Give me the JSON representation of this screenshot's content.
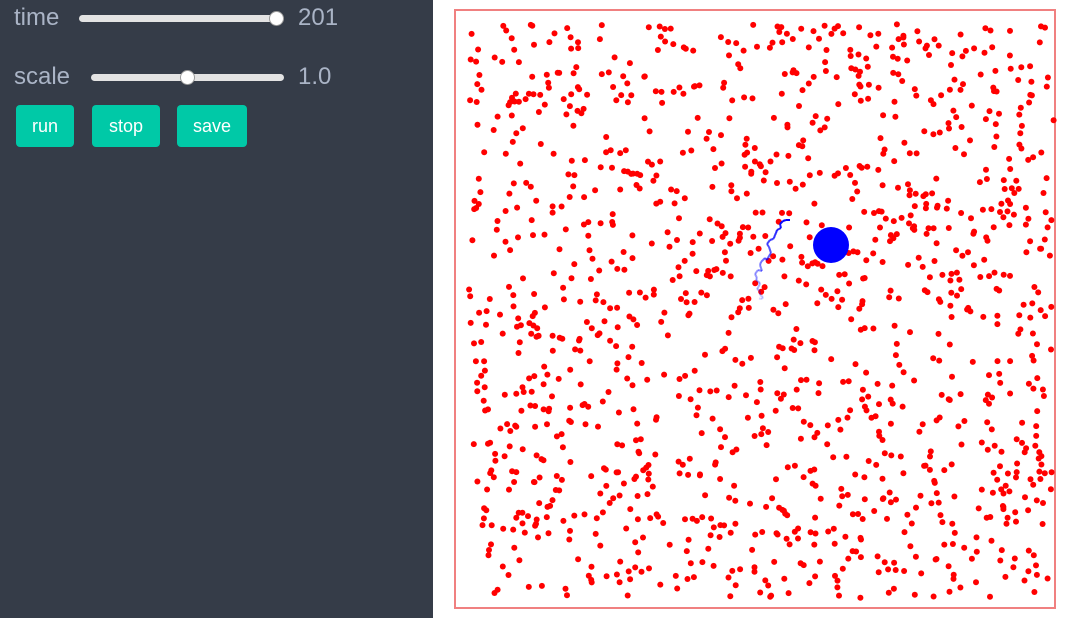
{
  "controls": {
    "time": {
      "label": "time",
      "value": "201",
      "min": 0,
      "max": 201,
      "current": 201
    },
    "scale": {
      "label": "scale",
      "value": "1.0",
      "min": 0,
      "max": 2,
      "current": 1.0
    }
  },
  "buttons": {
    "run": "run",
    "stop": "stop",
    "save": "save"
  },
  "simulation": {
    "particle_count": 1300,
    "tracer_color": "#0000ff",
    "particle_color": "#ff0000",
    "border_color": "#f08080",
    "tracer_path": [
      [
        -16,
        1.5
      ],
      [
        -13,
        1
      ],
      [
        -12,
        3
      ],
      [
        -15,
        5
      ],
      [
        -15,
        9
      ],
      [
        -18,
        11
      ],
      [
        -16,
        14
      ],
      [
        -15,
        17
      ],
      [
        -19,
        20
      ],
      [
        -18,
        22
      ],
      [
        -20,
        26
      ],
      [
        -17,
        30
      ],
      [
        -13,
        29
      ],
      [
        -14,
        32
      ],
      [
        -15,
        35
      ],
      [
        -14,
        38
      ],
      [
        -12,
        40
      ],
      [
        -10,
        42
      ],
      [
        -8,
        40
      ],
      [
        -6,
        44
      ],
      [
        -4,
        47
      ],
      [
        -6,
        53
      ],
      [
        -8,
        56
      ],
      [
        -5,
        60
      ],
      [
        -2,
        61
      ],
      [
        -1,
        62
      ],
      [
        0,
        65
      ],
      [
        1,
        67
      ],
      [
        2,
        70
      ],
      [
        4,
        71
      ],
      [
        6,
        72
      ],
      [
        5,
        76
      ],
      [
        8,
        79
      ],
      [
        11,
        80
      ],
      [
        15,
        80
      ]
    ]
  }
}
